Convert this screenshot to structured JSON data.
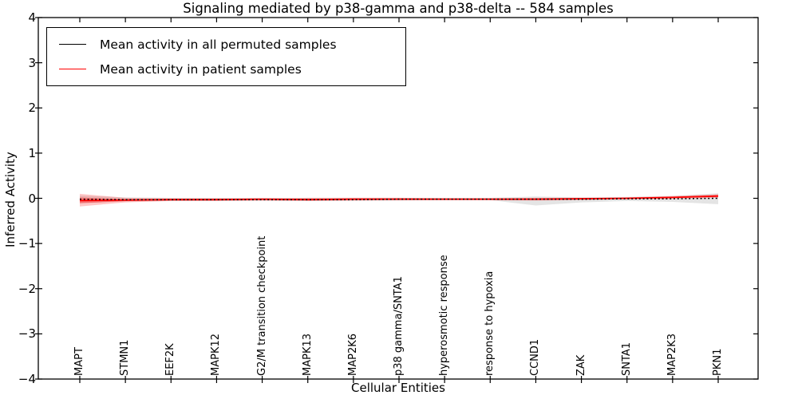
{
  "chart_data": {
    "type": "line",
    "title": "Signaling mediated by p38-gamma and p38-delta -- 584 samples",
    "xlabel": "Cellular Entities",
    "ylabel": "Inferred Activity",
    "ylim": [
      -4,
      4
    ],
    "yticks": [
      4,
      3,
      2,
      1,
      0,
      -1,
      -2,
      -3,
      -4
    ],
    "ytick_labels": [
      "4",
      "3",
      "2",
      "1",
      "0",
      "−1",
      "−2",
      "−3",
      "−4"
    ],
    "grid": false,
    "legend_position": "upper left",
    "categories": [
      "MAPT",
      "STMN1",
      "EEF2K",
      "MAPK12",
      "G2/M transition checkpoint",
      "MAPK13",
      "MAP2K6",
      "p38 gamma/SNTA1",
      "hyperosmotic response",
      "response to hypoxia",
      "CCND1",
      "ZAK",
      "SNTA1",
      "MAP2K3",
      "PKN1"
    ],
    "series": [
      {
        "name": "Mean activity in all permuted samples",
        "color": "#000000",
        "style": "dotted",
        "values": [
          -0.02,
          -0.03,
          -0.03,
          -0.03,
          -0.03,
          -0.03,
          -0.03,
          -0.02,
          -0.02,
          -0.02,
          -0.02,
          -0.02,
          -0.01,
          -0.01,
          0.0
        ]
      },
      {
        "name": "Mean activity in patient samples",
        "color": "#ff0000",
        "style": "solid",
        "values": [
          -0.05,
          -0.04,
          -0.03,
          -0.03,
          -0.02,
          -0.03,
          -0.02,
          -0.02,
          -0.02,
          -0.02,
          -0.02,
          -0.01,
          0.0,
          0.02,
          0.05
        ]
      }
    ],
    "bands": [
      {
        "name": "permuted-samples-confidence-band",
        "color": "#555555",
        "opacity": 0.16,
        "upper": [
          0.06,
          0.02,
          0.01,
          0.01,
          0.01,
          0.01,
          0.01,
          0.01,
          0.01,
          0.01,
          0.04,
          0.02,
          0.03,
          0.05,
          0.11
        ],
        "lower": [
          -0.11,
          -0.07,
          -0.06,
          -0.06,
          -0.05,
          -0.06,
          -0.05,
          -0.05,
          -0.04,
          -0.04,
          -0.16,
          -0.09,
          -0.06,
          -0.08,
          -0.13
        ]
      },
      {
        "name": "patient-samples-confidence-band",
        "color": "#ff0000",
        "opacity": 0.22,
        "upper": [
          0.1,
          0.01,
          0.0,
          0.0,
          0.0,
          0.01,
          0.01,
          0.01,
          0.0,
          0.0,
          0.01,
          0.01,
          0.02,
          0.05,
          0.09
        ],
        "lower": [
          -0.18,
          -0.09,
          -0.06,
          -0.06,
          -0.05,
          -0.06,
          -0.05,
          -0.04,
          -0.04,
          -0.04,
          -0.05,
          -0.04,
          -0.02,
          -0.01,
          0.01
        ]
      }
    ]
  }
}
